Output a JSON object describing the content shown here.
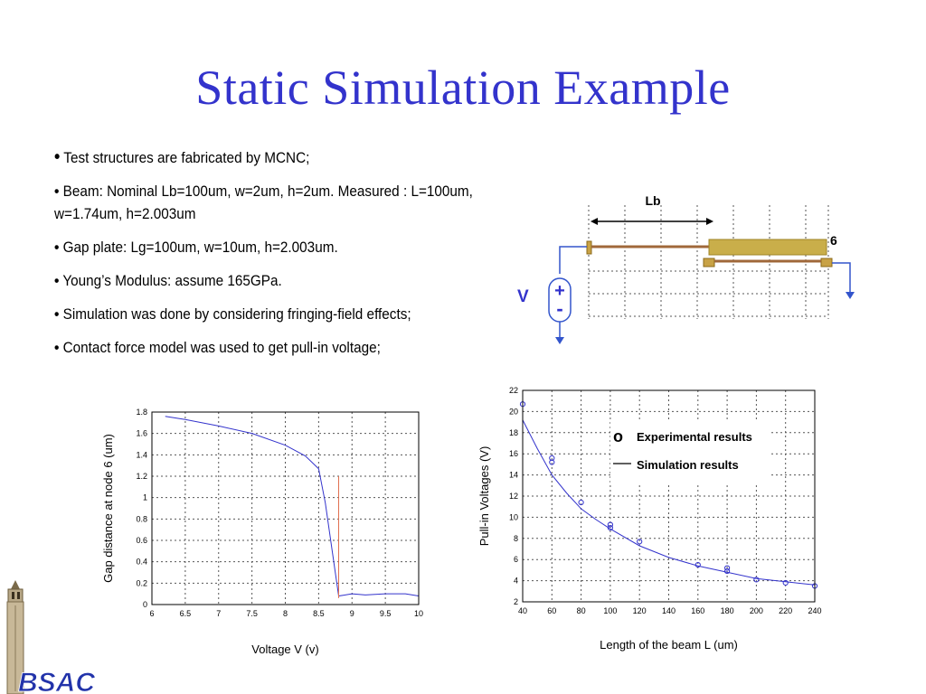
{
  "slide": {
    "title": "Static Simulation Example",
    "bullets": [
      "Test structures are fabricated by MCNC;",
      "Beam: Nominal Lb=100um, w=2um, h=2um. Measured : L=100um, w=1.74um, h=2.003um",
      "Gap plate: Lg=100um, w=10um,  h=2.003um.",
      "Young’s Modulus: assume 165GPa.",
      " Simulation was done by considering fringing-field effects;",
      "Contact force model was used to get pull-in voltage;"
    ],
    "bullet_symbol": "•",
    "logo_text": "BSAC"
  },
  "diagram": {
    "length_label": "Lb",
    "node_label": "6",
    "voltage_label": "V",
    "plus_label": "+",
    "minus_label": "-"
  },
  "chart_data": [
    {
      "type": "line",
      "xlabel": "Voltage V (v)",
      "ylabel": "Gap distance at node 6 (um)",
      "xlim": [
        6,
        10
      ],
      "ylim": [
        0,
        1.8
      ],
      "xticks": [
        "6",
        "6.5",
        "7",
        "7.5",
        "8",
        "8.5",
        "9",
        "9.5",
        "10"
      ],
      "yticks": [
        "0",
        "0.2",
        "0.4",
        "0.6",
        "0.8",
        "1",
        "1.2",
        "1.4",
        "1.6",
        "1.8"
      ],
      "grid": true,
      "series": [
        {
          "x": [
            6.2,
            6.5,
            7.0,
            7.5,
            8.0,
            8.3,
            8.5,
            8.6,
            8.8,
            9.0,
            9.2,
            9.5,
            9.8,
            10.0
          ],
          "values": [
            1.76,
            1.73,
            1.67,
            1.6,
            1.49,
            1.39,
            1.27,
            0.95,
            0.08,
            0.1,
            0.09,
            0.1,
            0.1,
            0.08
          ],
          "color": "#3333cc"
        },
        {
          "x": [
            8.8,
            8.8
          ],
          "values": [
            0.06,
            1.2
          ],
          "color": "#e07050"
        }
      ]
    },
    {
      "type": "scatter",
      "xlabel": "Length of the beam L (um)",
      "ylabel": "Pull-in Voltages (V)",
      "xlim": [
        40,
        240
      ],
      "ylim": [
        2,
        22
      ],
      "xticks": [
        "40",
        "60",
        "80",
        "100",
        "120",
        "140",
        "160",
        "180",
        "200",
        "220",
        "240"
      ],
      "yticks": [
        "2",
        "4",
        "6",
        "8",
        "10",
        "12",
        "14",
        "16",
        "18",
        "20",
        "22"
      ],
      "grid": true,
      "legend": {
        "placement": "top-right",
        "marker_symbol": "o",
        "experimental": "Experimental results",
        "simulation": "Simulation results"
      },
      "series": [
        {
          "x": [
            40,
            60,
            60,
            80,
            100,
            100,
            120,
            160,
            180,
            180,
            200,
            220,
            240
          ],
          "values": [
            20.7,
            15.6,
            15.2,
            11.4,
            9.3,
            9.0,
            7.7,
            5.5,
            5.2,
            4.9,
            4.1,
            3.8,
            3.5
          ],
          "color": "#3333cc"
        },
        {
          "x": [
            40,
            50,
            60,
            70,
            80,
            90,
            100,
            120,
            140,
            160,
            180,
            200,
            220,
            240
          ],
          "values": [
            19.2,
            16.5,
            14.0,
            12.3,
            10.8,
            9.8,
            8.9,
            7.3,
            6.2,
            5.4,
            4.8,
            4.2,
            3.9,
            3.6
          ],
          "color": "#3333cc"
        }
      ]
    }
  ]
}
